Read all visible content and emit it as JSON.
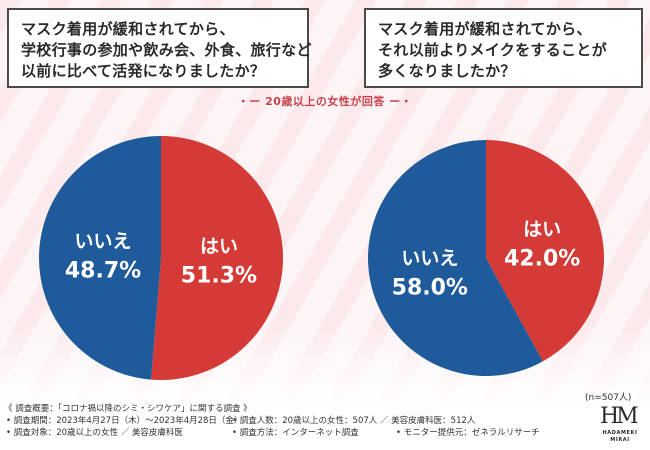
{
  "questions": {
    "q1": [
      "マスク着用が緩和されてから、",
      "学校行事の参加や飲み会、外食、旅行など",
      "以前に比べて活発になりましたか？"
    ],
    "q2": [
      "マスク着用が緩和されてから、",
      "それ以前よりメイクをすることが",
      "多くなりましたか？"
    ]
  },
  "subtitle": "・ー 20歳以上の女性が回答 ー・",
  "chart_data": [
    {
      "type": "pie",
      "title": "マスク着用が緩和されてから、学校行事の参加や飲み会、外食、旅行など以前に比べて活発になりましたか？",
      "slices": [
        {
          "label": "はい",
          "value": 51.3,
          "display": "51.3%",
          "color": "#d43a36"
        },
        {
          "label": "いいえ",
          "value": 48.7,
          "display": "48.7%",
          "color": "#1f5a9a"
        }
      ]
    },
    {
      "type": "pie",
      "title": "マスク着用が緩和されてから、それ以前よりメイクをすることが多くなりましたか？",
      "slices": [
        {
          "label": "はい",
          "value": 42.0,
          "display": "42.0%",
          "color": "#d43a36"
        },
        {
          "label": "いいえ",
          "value": 58.0,
          "display": "58.0%",
          "color": "#1f5a9a"
        }
      ]
    }
  ],
  "sample_size": "(n=507人)",
  "footnotes": {
    "overview": "《 調査概要：「コロナ禍以降のシミ・シワケア」に関する調査 》",
    "period": "• 調査期間：2023年4月27日（木）〜2023年4月28日（金）",
    "respondents": "• 調査人数：20歳以上の女性：507人 ／ 美容皮膚科医：512人",
    "target": "• 調査対象：20歳以上の女性 ／ 美容皮膚科医",
    "method": "• 調査方法：インターネット調査",
    "provider": "• モニター提供元：ゼネラルリサーチ"
  },
  "logo": {
    "mark": "HM",
    "line1": "HADAMEKI",
    "line2": "MIRAI"
  }
}
